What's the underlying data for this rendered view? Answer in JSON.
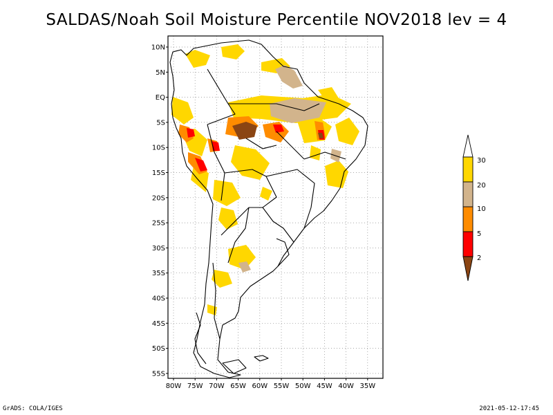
{
  "title": "SALDAS/Noah Soil Moisture Percentile NOV2018 lev = 4",
  "map": {
    "lat_labels": [
      "10N",
      "5N",
      "EQ",
      "5S",
      "10S",
      "15S",
      "20S",
      "25S",
      "30S",
      "35S",
      "40S",
      "45S",
      "50S",
      "55S"
    ],
    "lon_labels": [
      "80W",
      "75W",
      "70W",
      "65W",
      "60W",
      "55W",
      "50W",
      "45W",
      "40W",
      "35W"
    ],
    "gridlines": "dotted"
  },
  "legend": {
    "labels": [
      "2",
      "5",
      "10",
      "20",
      "30"
    ],
    "colors": {
      "below_2": "#8b4513",
      "2_5": "#ff0000",
      "5_10": "#ff8c00",
      "10_20": "#d2b48c",
      "20_30": "#ffd700",
      "above_30": "#ffffff"
    }
  },
  "footer": {
    "left": "GrADS: COLA/IGES",
    "right": "2021-05-12-17:45"
  }
}
